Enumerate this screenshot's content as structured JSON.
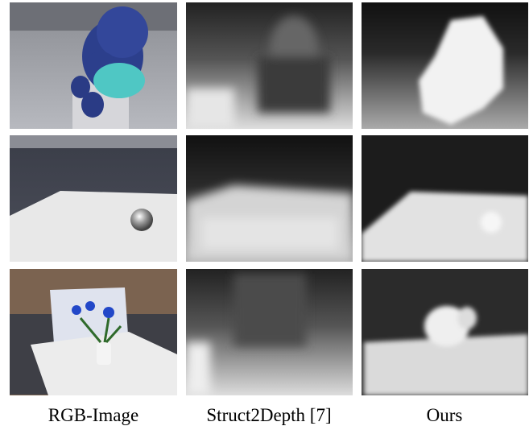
{
  "figure": {
    "columns": [
      "RGB-Image",
      "Struct2Depth [7]",
      "Ours"
    ]
  }
}
